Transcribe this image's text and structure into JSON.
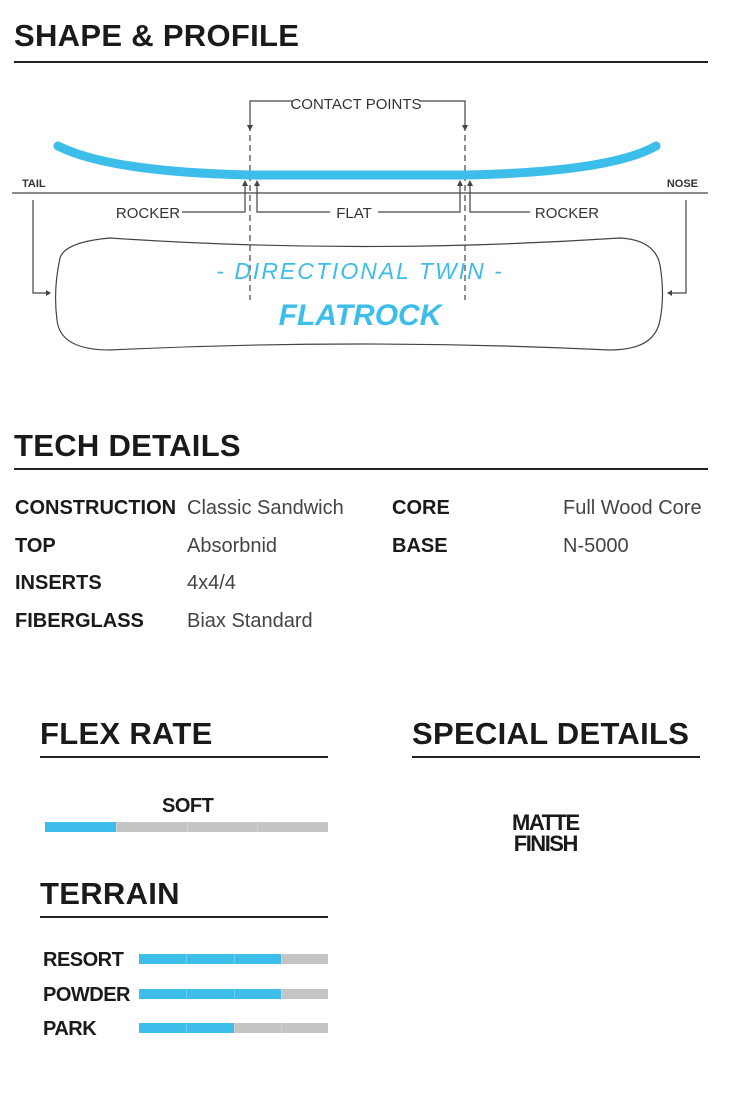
{
  "shape_profile": {
    "title": "SHAPE & PROFILE",
    "contact_points": "CONTACT POINTS",
    "tail": "TAIL",
    "nose": "NOSE",
    "rocker_left": "ROCKER",
    "flat": "FLAT",
    "rocker_right": "ROCKER",
    "shape_name": "- DIRECTIONAL TWIN -",
    "model_name": "FLATROCK",
    "accent_color": "#3dbde9"
  },
  "tech_details": {
    "title": "TECH DETAILS",
    "left": [
      {
        "label": "CONSTRUCTION",
        "value": "Classic Sandwich"
      },
      {
        "label": "TOP",
        "value": "Absorbnid"
      },
      {
        "label": "INSERTS",
        "value": "4x4/4"
      },
      {
        "label": "FIBERGLASS",
        "value": "Biax Standard"
      }
    ],
    "right": [
      {
        "label": "CORE",
        "value": "Full Wood Core"
      },
      {
        "label": "BASE",
        "value": "N-5000"
      }
    ]
  },
  "flex_rate": {
    "title": "FLEX RATE",
    "label": "SOFT",
    "level": 1,
    "max": 4
  },
  "terrain": {
    "title": "TERRAIN",
    "items": [
      {
        "label": "RESORT",
        "level": 3,
        "max": 4
      },
      {
        "label": "POWDER",
        "level": 3,
        "max": 4
      },
      {
        "label": "PARK",
        "level": 2,
        "max": 4
      }
    ]
  },
  "special_details": {
    "title": "SPECIAL DETAILS",
    "badge_line1": "MATTE",
    "badge_line2": "FINISH"
  }
}
